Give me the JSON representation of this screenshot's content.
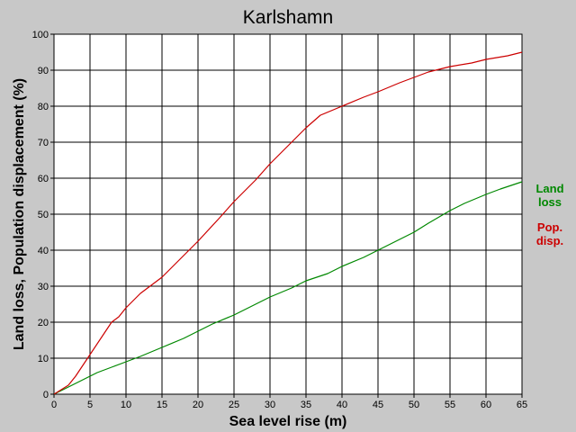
{
  "chart_data": {
    "type": "line",
    "title": "Karlshamn",
    "xlabel": "Sea level rise (m)",
    "ylabel": "Land loss, Population displacement (%)",
    "xlim": [
      0,
      65
    ],
    "ylim": [
      0,
      100
    ],
    "xticks": [
      0,
      5,
      10,
      15,
      20,
      25,
      30,
      35,
      40,
      45,
      50,
      55,
      60,
      65
    ],
    "yticks": [
      0,
      10,
      20,
      30,
      40,
      50,
      60,
      70,
      80,
      90,
      100
    ],
    "grid": true,
    "background_color": "#c8c8c8",
    "plot_background_color": "#ffffff",
    "legend_position": "right",
    "series": [
      {
        "name": "Land loss",
        "legend_lines": [
          "Land",
          "loss"
        ],
        "color": "#008800",
        "points": [
          [
            0,
            0
          ],
          [
            2,
            2
          ],
          [
            4,
            4
          ],
          [
            6,
            6
          ],
          [
            8,
            7.5
          ],
          [
            10,
            9
          ],
          [
            12,
            10.5
          ],
          [
            15,
            13
          ],
          [
            18,
            15.5
          ],
          [
            20,
            17.5
          ],
          [
            22,
            19.5
          ],
          [
            25,
            22
          ],
          [
            28,
            25
          ],
          [
            30,
            27
          ],
          [
            33,
            29.5
          ],
          [
            35,
            31.5
          ],
          [
            38,
            33.5
          ],
          [
            40,
            35.5
          ],
          [
            43,
            38
          ],
          [
            45,
            40
          ],
          [
            47,
            42
          ],
          [
            50,
            45
          ],
          [
            52,
            47.5
          ],
          [
            55,
            51
          ],
          [
            57,
            53
          ],
          [
            60,
            55.5
          ],
          [
            62,
            57
          ],
          [
            65,
            59
          ]
        ]
      },
      {
        "name": "Pop. disp.",
        "legend_lines": [
          "Pop.",
          "disp."
        ],
        "color": "#cc0000",
        "points": [
          [
            0,
            0
          ],
          [
            2,
            2.5
          ],
          [
            3,
            5
          ],
          [
            5,
            11
          ],
          [
            7,
            17
          ],
          [
            8,
            20
          ],
          [
            9,
            21.5
          ],
          [
            10,
            24
          ],
          [
            12,
            28
          ],
          [
            15,
            32.5
          ],
          [
            18,
            38.5
          ],
          [
            20,
            42.5
          ],
          [
            23,
            49
          ],
          [
            25,
            53.5
          ],
          [
            28,
            59.5
          ],
          [
            30,
            64
          ],
          [
            33,
            70
          ],
          [
            35,
            74
          ],
          [
            37,
            77.5
          ],
          [
            40,
            80
          ],
          [
            43,
            82.5
          ],
          [
            45,
            84
          ],
          [
            48,
            86.5
          ],
          [
            50,
            88
          ],
          [
            52,
            89.5
          ],
          [
            55,
            91
          ],
          [
            58,
            92
          ],
          [
            60,
            93
          ],
          [
            63,
            94
          ],
          [
            65,
            95
          ]
        ]
      }
    ]
  }
}
